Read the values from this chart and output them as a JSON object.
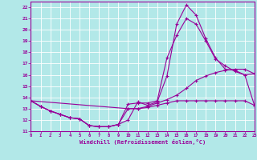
{
  "xlabel": "Windchill (Refroidissement éolien,°C)",
  "bg_color": "#b2e8e8",
  "line_color": "#990099",
  "grid_color": "#ffffff",
  "xmin": 0,
  "xmax": 23,
  "ymin": 11,
  "ymax": 22.5,
  "yticks": [
    11,
    12,
    13,
    14,
    15,
    16,
    17,
    18,
    19,
    20,
    21,
    22
  ],
  "xticks": [
    0,
    1,
    2,
    3,
    4,
    5,
    6,
    7,
    8,
    9,
    10,
    11,
    12,
    13,
    14,
    15,
    16,
    17,
    18,
    19,
    20,
    21,
    22,
    23
  ],
  "curve1_x": [
    0,
    1,
    2,
    3,
    4,
    5,
    6,
    7,
    8,
    9,
    10,
    11,
    12,
    13,
    14,
    15,
    16,
    17,
    18,
    19,
    20,
    21,
    22,
    23
  ],
  "curve1_y": [
    13.7,
    13.2,
    12.8,
    12.5,
    12.2,
    12.1,
    11.5,
    11.4,
    11.4,
    11.6,
    12.0,
    13.6,
    13.3,
    13.6,
    15.9,
    20.5,
    22.2,
    21.3,
    19.2,
    17.5,
    16.5,
    16.4,
    16.0,
    16.1
  ],
  "curve2_x": [
    0,
    1,
    2,
    3,
    4,
    5,
    6,
    7,
    8,
    9,
    10,
    11,
    12,
    13,
    14,
    15,
    16,
    17,
    18,
    19,
    20,
    21,
    22,
    23
  ],
  "curve2_y": [
    13.7,
    13.2,
    12.8,
    12.5,
    12.2,
    12.1,
    11.5,
    11.4,
    11.4,
    11.6,
    13.4,
    13.5,
    13.5,
    13.7,
    17.5,
    19.5,
    21.0,
    20.5,
    19.0,
    17.4,
    16.8,
    16.3,
    16.0,
    13.3
  ],
  "curve3_x": [
    0,
    10,
    11,
    12,
    13,
    14,
    15,
    16,
    17,
    18,
    19,
    20,
    21,
    22,
    23
  ],
  "curve3_y": [
    13.7,
    13.0,
    13.0,
    13.2,
    13.5,
    13.8,
    14.2,
    14.8,
    15.5,
    15.9,
    16.2,
    16.4,
    16.5,
    16.5,
    16.1
  ],
  "curve4_x": [
    0,
    1,
    2,
    3,
    4,
    5,
    6,
    7,
    8,
    9,
    10,
    11,
    12,
    13,
    14,
    15,
    16,
    17,
    18,
    19,
    20,
    21,
    22,
    23
  ],
  "curve4_y": [
    13.7,
    13.2,
    12.8,
    12.5,
    12.2,
    12.1,
    11.5,
    11.4,
    11.4,
    11.6,
    13.0,
    13.0,
    13.1,
    13.3,
    13.5,
    13.7,
    13.7,
    13.7,
    13.7,
    13.7,
    13.7,
    13.7,
    13.7,
    13.3
  ]
}
